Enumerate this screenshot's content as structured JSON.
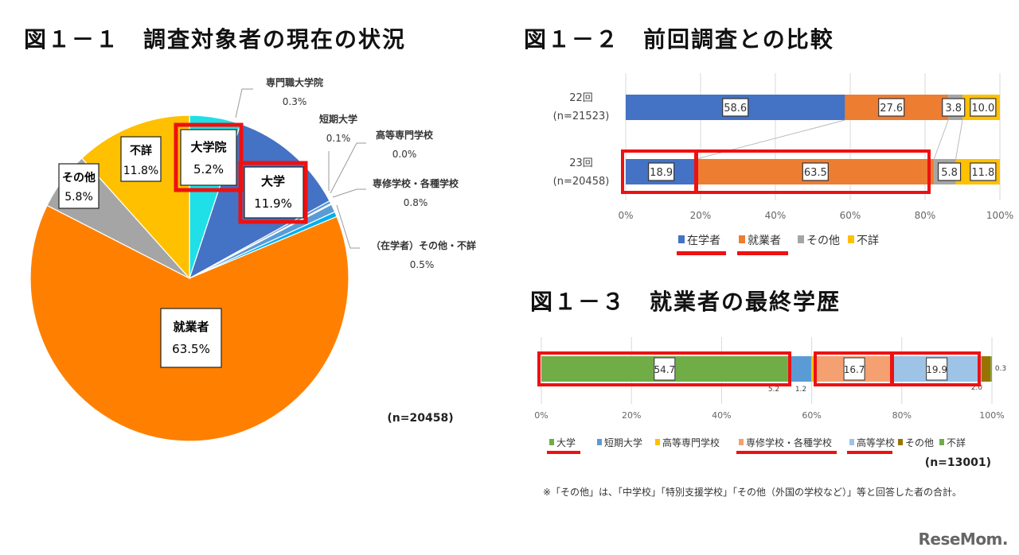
{
  "figures": {
    "fig1": {
      "title": "図１－１　調査対象者の現在の状況",
      "n_label": "(n=20458)"
    },
    "fig2": {
      "title": "図１－２　前回調査との比較"
    },
    "fig3": {
      "title": "図１－３　就業者の最終学歴",
      "n_label": "(n=13001)",
      "note": "※「その他」は、「中学校」「特別支援学校」「その他（外国の学校など）」等と回答した者の合計。"
    }
  },
  "watermark": "ReseMom.",
  "colors": {
    "highlight": "#ee1111",
    "pie": {
      "daigakuin": "#1fe0e6",
      "daigaku": "#4472c4",
      "small_light": "#5b9bd5",
      "small_cyan": "#00b0f0",
      "shugyo": "#ff8000",
      "sonota": "#a5a5a5",
      "fusho": "#ffc000"
    },
    "bar2": {
      "zaigaku": "#4472c4",
      "shugyo": "#ed7d31",
      "sonota": "#a5a5a5",
      "fusho": "#ffc000"
    },
    "bar3": {
      "daigaku": "#70ad47",
      "tanki": "#5b9bd5",
      "kosen": "#ffc000",
      "senshu": "#f4a070",
      "koko": "#9dc3e6",
      "sonota": "#997300",
      "fusho": "#70ad47"
    }
  },
  "chart_data": [
    {
      "type": "pie",
      "title": "図１－１　調査対象者の現在の状況",
      "n": 20458,
      "slices": [
        {
          "label": "大学院",
          "value": 5.2,
          "highlighted": true
        },
        {
          "label": "大学",
          "value": 11.9,
          "highlighted": true
        },
        {
          "label": "専門職大学院",
          "value": 0.3
        },
        {
          "label": "短期大学",
          "value": 0.1
        },
        {
          "label": "高等専門学校",
          "value": 0.0
        },
        {
          "label": "専修学校・各種学校",
          "value": 0.8
        },
        {
          "label": "(在学者) その他・不詳",
          "value": 0.5
        },
        {
          "label": "就業者",
          "value": 63.5
        },
        {
          "label": "その他",
          "value": 5.8
        },
        {
          "label": "不詳",
          "value": 11.8
        }
      ]
    },
    {
      "type": "bar",
      "orientation": "horizontal-stacked-100",
      "title": "図１－２　前回調査との比較",
      "categories": [
        "22回 (n=21523)",
        "23回 (n=20458)"
      ],
      "category_lines": [
        [
          "22回",
          "(n=21523)"
        ],
        [
          "23回",
          "(n=20458)"
        ]
      ],
      "series": [
        {
          "name": "在学者",
          "values": [
            58.6,
            18.9
          ]
        },
        {
          "name": "就業者",
          "values": [
            27.6,
            63.5
          ]
        },
        {
          "name": "その他",
          "values": [
            3.8,
            5.8
          ]
        },
        {
          "name": "不詳",
          "values": [
            10.0,
            11.8
          ]
        }
      ],
      "xticks": [
        "0%",
        "20%",
        "40%",
        "60%",
        "80%",
        "100%"
      ],
      "xlim": [
        0,
        100
      ],
      "grid": true,
      "legend": [
        "在学者",
        "就業者",
        "その他",
        "不詳"
      ],
      "legend_position": "bottom"
    },
    {
      "type": "bar",
      "orientation": "horizontal-stacked-100",
      "title": "図１－３　就業者の最終学歴",
      "n": 13001,
      "categories": [
        "就業者"
      ],
      "series": [
        {
          "name": "大学",
          "values": [
            54.7
          ]
        },
        {
          "name": "短期大学",
          "values": [
            5.2
          ]
        },
        {
          "name": "高等専門学校",
          "values": [
            1.2
          ]
        },
        {
          "name": "専修学校・各種学校",
          "values": [
            16.7
          ]
        },
        {
          "name": "高等学校",
          "values": [
            19.9
          ]
        },
        {
          "name": "その他",
          "values": [
            2.0
          ]
        },
        {
          "name": "不詳",
          "values": [
            0.3
          ]
        }
      ],
      "xticks": [
        "0%",
        "20%",
        "40%",
        "60%",
        "80%",
        "100%"
      ],
      "xlim": [
        0,
        100
      ],
      "grid": true,
      "legend": [
        "大学",
        "短期大学",
        "高等専門学校",
        "専修学校・各種学校",
        "高等学校",
        "その他",
        "不詳"
      ],
      "legend_position": "bottom"
    }
  ],
  "labels": {
    "pie": {
      "daigakuin": [
        "大学院",
        "5.2%"
      ],
      "daigaku": [
        "大学",
        "11.9%"
      ],
      "senmonshoku": [
        "専門職大学院",
        "0.3%"
      ],
      "tanki": [
        "短期大学",
        "0.1%"
      ],
      "kosen": [
        "高等専門学校",
        "0.0%"
      ],
      "senshu": [
        "専修学校・各種学校",
        "0.8%"
      ],
      "zaigaku_other": [
        "（在学者）その他・不詳",
        "0.5%"
      ],
      "shugyo": [
        "就業者",
        "63.5%"
      ],
      "sonota": [
        "その他",
        "5.8%"
      ],
      "fusho": [
        "不詳",
        "11.8%"
      ]
    },
    "bar2_rows": [
      {
        "line1": "22回",
        "line2": "(n=21523)",
        "vals": [
          "58.6",
          "27.6",
          "3.8",
          "10.0"
        ]
      },
      {
        "line1": "23回",
        "line2": "(n=20458)",
        "vals": [
          "18.9",
          "63.5",
          "5.8",
          "11.8"
        ]
      }
    ],
    "bar3_vals": [
      "54.7",
      "5.2",
      "1.2",
      "16.7",
      "19.9",
      "2.0",
      "0.3"
    ]
  }
}
